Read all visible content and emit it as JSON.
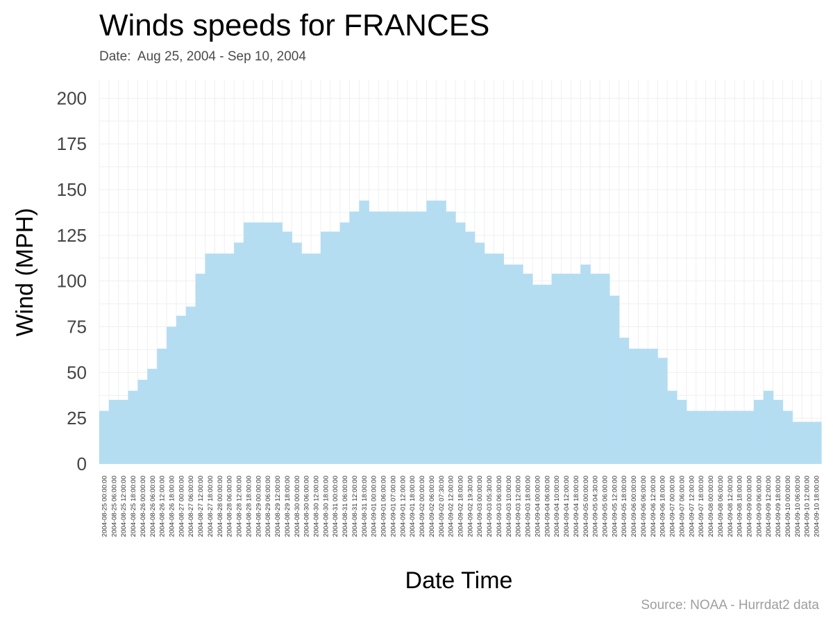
{
  "chart_data": {
    "type": "area",
    "title": "Winds speeds for FRANCES",
    "subtitle": "Date:  Aug 25, 2004 - Sep 10, 2004",
    "caption": "Source: NOAA - Hurrdat2 data",
    "xlabel": "Date Time",
    "ylabel": "Wind (MPH)",
    "ylim": [
      0,
      210
    ],
    "yticks": [
      0,
      25,
      50,
      75,
      100,
      125,
      150,
      175,
      200
    ],
    "grid": true,
    "fill_color": "#b4ddf2",
    "x": [
      "2004-08-25 00:00:00",
      "2004-08-25 06:00:00",
      "2004-08-25 12:00:00",
      "2004-08-25 18:00:00",
      "2004-08-26 00:00:00",
      "2004-08-26 06:00:00",
      "2004-08-26 12:00:00",
      "2004-08-26 18:00:00",
      "2004-08-27 00:00:00",
      "2004-08-27 06:00:00",
      "2004-08-27 12:00:00",
      "2004-08-27 18:00:00",
      "2004-08-28 00:00:00",
      "2004-08-28 06:00:00",
      "2004-08-28 12:00:00",
      "2004-08-28 18:00:00",
      "2004-08-29 00:00:00",
      "2004-08-29 06:00:00",
      "2004-08-29 12:00:00",
      "2004-08-29 18:00:00",
      "2004-08-30 00:00:00",
      "2004-08-30 06:00:00",
      "2004-08-30 12:00:00",
      "2004-08-30 18:00:00",
      "2004-08-31 00:00:00",
      "2004-08-31 06:00:00",
      "2004-08-31 12:00:00",
      "2004-08-31 18:00:00",
      "2004-09-01 00:00:00",
      "2004-09-01 06:00:00",
      "2004-09-01 07:00:00",
      "2004-09-01 12:00:00",
      "2004-09-01 18:00:00",
      "2004-09-02 00:00:00",
      "2004-09-02 06:00:00",
      "2004-09-02 07:30:00",
      "2004-09-02 12:00:00",
      "2004-09-02 18:00:00",
      "2004-09-02 19:30:00",
      "2004-09-03 00:00:00",
      "2004-09-03 05:30:00",
      "2004-09-03 06:00:00",
      "2004-09-03 10:00:00",
      "2004-09-03 12:00:00",
      "2004-09-03 18:00:00",
      "2004-09-04 00:00:00",
      "2004-09-04 06:00:00",
      "2004-09-04 10:00:00",
      "2004-09-04 12:00:00",
      "2004-09-04 18:00:00",
      "2004-09-05 00:00:00",
      "2004-09-05 04:30:00",
      "2004-09-05 06:00:00",
      "2004-09-05 12:00:00",
      "2004-09-05 18:00:00",
      "2004-09-06 00:00:00",
      "2004-09-06 06:00:00",
      "2004-09-06 12:00:00",
      "2004-09-06 18:00:00",
      "2004-09-07 00:00:00",
      "2004-09-07 06:00:00",
      "2004-09-07 12:00:00",
      "2004-09-07 18:00:00",
      "2004-09-08 00:00:00",
      "2004-09-08 06:00:00",
      "2004-09-08 12:00:00",
      "2004-09-08 18:00:00",
      "2004-09-09 00:00:00",
      "2004-09-09 06:00:00",
      "2004-09-09 12:00:00",
      "2004-09-09 18:00:00",
      "2004-09-10 00:00:00",
      "2004-09-10 06:00:00",
      "2004-09-10 12:00:00",
      "2004-09-10 18:00:00"
    ],
    "y": [
      29,
      35,
      35,
      40,
      46,
      52,
      63,
      75,
      81,
      86,
      104,
      115,
      115,
      115,
      121,
      132,
      132,
      132,
      132,
      127,
      121,
      115,
      115,
      127,
      127,
      132,
      138,
      144,
      138,
      138,
      138,
      138,
      138,
      138,
      144,
      144,
      138,
      132,
      127,
      121,
      115,
      115,
      109,
      109,
      104,
      98,
      98,
      104,
      104,
      104,
      109,
      104,
      104,
      92,
      69,
      63,
      63,
      63,
      58,
      40,
      35,
      29,
      29,
      29,
      29,
      29,
      29,
      29,
      35,
      40,
      35,
      29,
      23,
      23,
      23
    ]
  }
}
